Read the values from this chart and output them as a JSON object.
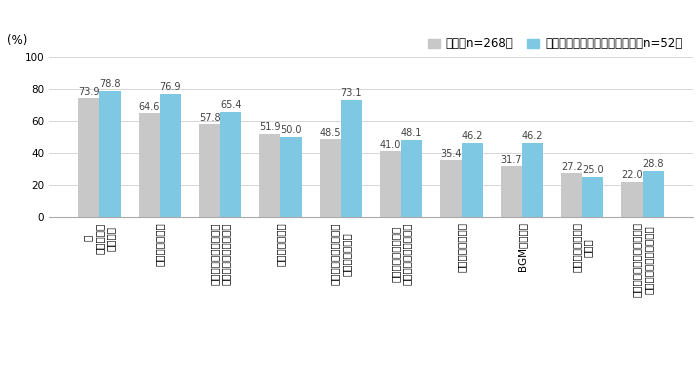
{
  "ylabel": "(%)",
  "yticks": [
    0,
    20,
    40,
    60,
    80,
    100
  ],
  "ylim": [
    0,
    105
  ],
  "x_labels": [
    "／\n窓を開ける\n換気する",
    "近所を散歩する",
    "家でお茶（コーヒー・\n紅茶等を含む）を飲む",
    "ベランダに出る",
    "近所をウォーキング、\nジョギングする",
    "家で軽い運動をする\nどストレッチ、ヨガな",
    "近所の公園に行く",
    "BGMをかける",
    "近所のカフェなど\nに行く",
    "扇風機やサーキュレータで\n室内の空気をかき混ぜる"
  ],
  "values_all": [
    73.9,
    64.6,
    57.8,
    51.9,
    48.5,
    41.0,
    35.4,
    31.7,
    27.2,
    22.0
  ],
  "values_veteran": [
    78.8,
    76.9,
    65.4,
    50.0,
    73.1,
    48.1,
    46.2,
    46.2,
    25.0,
    28.8
  ],
  "color_all": "#c8c8c8",
  "color_veteran": "#7ec8e3",
  "legend_all": "全体（n=268）",
  "legend_veteran": "ベテランアウトドアユーザー（n=52）",
  "bar_width": 0.35,
  "value_fontsize": 7.0,
  "tick_fontsize": 7.5,
  "legend_fontsize": 8.5,
  "ylabel_fontsize": 8.5
}
